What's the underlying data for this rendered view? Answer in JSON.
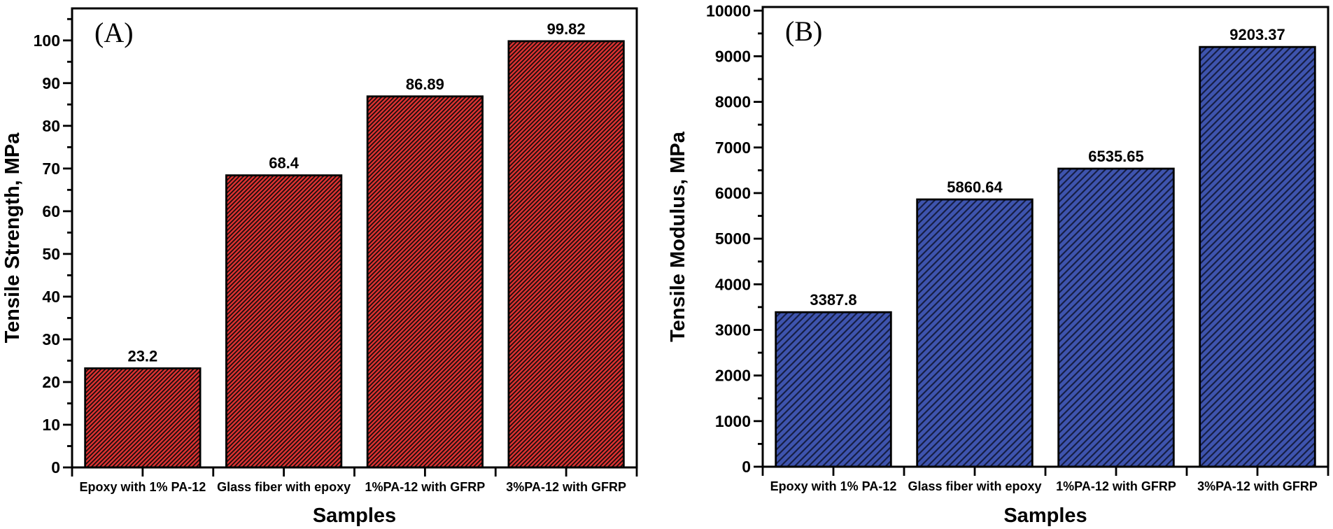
{
  "figure": {
    "panels": [
      {
        "id": "A",
        "panel_letter": "(A)"
      },
      {
        "id": "B",
        "panel_letter": "(B)"
      }
    ]
  },
  "chart_data": [
    {
      "type": "bar",
      "panel_letter": "(A)",
      "title": "",
      "categories": [
        "Epoxy with 1% PA-12",
        "Glass fiber with epoxy",
        "1%PA-12 with GFRP",
        "3%PA-12 with GFRP"
      ],
      "values": [
        23.2,
        68.4,
        86.89,
        99.82
      ],
      "value_labels": [
        "23.2",
        "68.4",
        "86.89",
        "99.82"
      ],
      "xlabel": "Samples",
      "ylabel": "Tensile Strength, MPa",
      "ylim": [
        0,
        107.5
      ],
      "ytick_step": 10,
      "yminor_step": 5,
      "ytick_labels": [
        "0",
        "10",
        "20",
        "30",
        "40",
        "50",
        "60",
        "70",
        "80",
        "90",
        "100"
      ],
      "grid": false,
      "legend": "none",
      "bar_fill": "#db3231",
      "hatch_color": "#1a0c0c",
      "bar_border": "#000000",
      "axis_color": "#000000"
    },
    {
      "type": "bar",
      "panel_letter": "(B)",
      "title": "",
      "categories": [
        "Epoxy with 1% PA-12",
        "Glass fiber with epoxy",
        "1%PA-12 with GFRP",
        "3%PA-12 with GFRP"
      ],
      "values": [
        3387.8,
        5860.64,
        6535.65,
        9203.37
      ],
      "value_labels": [
        "3387.8",
        "5860.64",
        "6535.65",
        "9203.37"
      ],
      "xlabel": "Samples",
      "ylabel": "Tensile Modulus, MPa",
      "ylim": [
        0,
        10080
      ],
      "ytick_step": 1000,
      "yminor_step": 500,
      "ytick_labels": [
        "0",
        "1000",
        "2000",
        "3000",
        "4000",
        "5000",
        "6000",
        "7000",
        "8000",
        "9000",
        "10000"
      ],
      "grid": false,
      "legend": "none",
      "bar_fill": "#3e54ae",
      "hatch_color": "#161e44",
      "bar_border": "#000000",
      "axis_color": "#000000"
    }
  ]
}
